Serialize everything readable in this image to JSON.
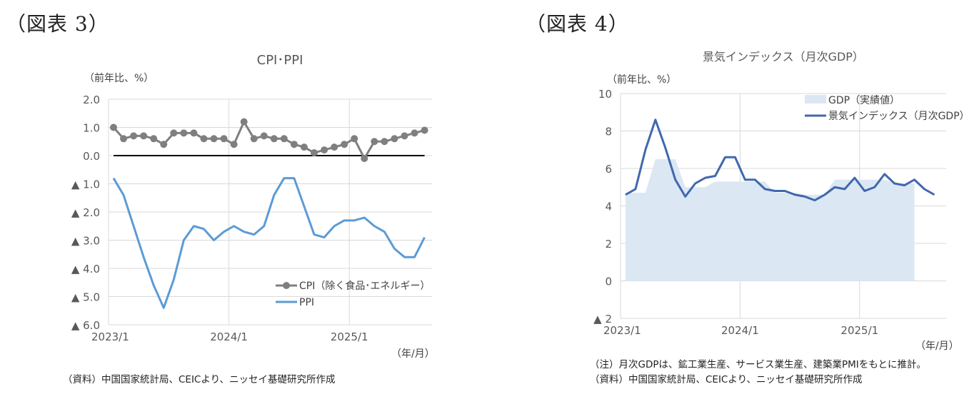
{
  "figures": [
    {
      "label": "（図表 3）",
      "title": "CPI･PPI",
      "unit": "（前年比、%）",
      "xunit": "（年/月）",
      "source": "（資料）中国国家統計局、CEICより、ニッセイ基礎研究所作成"
    },
    {
      "label": "（図表 4）",
      "title": "景気インデックス（月次GDP）",
      "unit": "（前年比、%）",
      "xunit": "（年/月）",
      "note": "（注）月次GDPは、鉱工業生産、サービス業生産、建築業PMIをもとに推計。",
      "source": "（資料）中国国家統計局、CEICより、ニッセイ基礎研究所作成"
    }
  ],
  "chart_data": [
    {
      "type": "line",
      "title": "CPI･PPI",
      "xlabel": "（年/月）",
      "ylabel": "（前年比、%）",
      "ylim": [
        -6.0,
        2.0
      ],
      "y_ticks": [
        "2.0",
        "1.0",
        "0.0",
        "▲ 1.0",
        "▲ 2.0",
        "▲ 3.0",
        "▲ 4.0",
        "▲ 5.0",
        "▲ 6.0"
      ],
      "x_tick_labels": [
        "2023/1",
        "2024/1",
        "2025/1"
      ],
      "grid": true,
      "legend_position": "lower right",
      "x": [
        "2023/1",
        "2023/2",
        "2023/3",
        "2023/4",
        "2023/5",
        "2023/6",
        "2023/7",
        "2023/8",
        "2023/9",
        "2023/10",
        "2023/11",
        "2023/12",
        "2024/1",
        "2024/2",
        "2024/3",
        "2024/4",
        "2024/5",
        "2024/6",
        "2024/7",
        "2024/8",
        "2024/9",
        "2024/10",
        "2024/11",
        "2024/12",
        "2025/1",
        "2025/2",
        "2025/3",
        "2025/4",
        "2025/5",
        "2025/6",
        "2025/7",
        "2025/8"
      ],
      "series": [
        {
          "name": "CPI（除く食品･エネルギー）",
          "color": "#7f7f7f",
          "marker": "circle",
          "values": [
            1.0,
            0.6,
            0.7,
            0.7,
            0.6,
            0.4,
            0.8,
            0.8,
            0.8,
            0.6,
            0.6,
            0.6,
            0.4,
            1.2,
            0.6,
            0.7,
            0.6,
            0.6,
            0.4,
            0.3,
            0.1,
            0.2,
            0.3,
            0.4,
            0.6,
            -0.1,
            0.5,
            0.5,
            0.6,
            0.7,
            0.8,
            0.9
          ]
        },
        {
          "name": "PPI",
          "color": "#5b9bd5",
          "marker": "none",
          "values": [
            -0.8,
            -1.4,
            -2.5,
            -3.6,
            -4.6,
            -5.4,
            -4.4,
            -3.0,
            -2.5,
            -2.6,
            -3.0,
            -2.7,
            -2.5,
            -2.7,
            -2.8,
            -2.5,
            -1.4,
            -0.8,
            -0.8,
            -1.8,
            -2.8,
            -2.9,
            -2.5,
            -2.3,
            -2.3,
            -2.2,
            -2.5,
            -2.7,
            -3.3,
            -3.6,
            -3.6,
            -2.9
          ]
        }
      ]
    },
    {
      "type": "line",
      "title": "景気インデックス（月次GDP）",
      "xlabel": "（年/月）",
      "ylabel": "（前年比、%）",
      "ylim": [
        -2,
        10
      ],
      "y_ticks": [
        "10",
        "8",
        "6",
        "4",
        "2",
        "0",
        "▲ 2"
      ],
      "x_tick_labels": [
        "2023/1",
        "2024/1",
        "2025/1"
      ],
      "grid": true,
      "legend_position": "upper right",
      "x": [
        "2023/1",
        "2023/2",
        "2023/3",
        "2023/4",
        "2023/5",
        "2023/6",
        "2023/7",
        "2023/8",
        "2023/9",
        "2023/10",
        "2023/11",
        "2023/12",
        "2024/1",
        "2024/2",
        "2024/3",
        "2024/4",
        "2024/5",
        "2024/6",
        "2024/7",
        "2024/8",
        "2024/9",
        "2024/10",
        "2024/11",
        "2024/12",
        "2025/1",
        "2025/2",
        "2025/3",
        "2025/4",
        "2025/5",
        "2025/6",
        "2025/7",
        "2025/8"
      ],
      "series": [
        {
          "name": "GDP（実績値）",
          "type": "area",
          "color": "#dce7f4",
          "values": [
            4.7,
            4.7,
            4.7,
            6.5,
            6.5,
            6.5,
            5.0,
            5.0,
            5.0,
            5.3,
            5.3,
            5.3,
            5.3,
            5.3,
            5.3,
            4.7,
            4.7,
            4.7,
            4.6,
            4.6,
            4.6,
            5.4,
            5.4,
            5.4,
            5.4,
            5.4,
            5.4,
            5.2,
            5.2,
            5.2,
            null,
            null
          ]
        },
        {
          "name": "景気インデックス（月次GDP）",
          "type": "line",
          "color": "#4068ad",
          "values": [
            4.6,
            4.9,
            7.0,
            8.6,
            7.1,
            5.4,
            4.5,
            5.2,
            5.5,
            5.6,
            6.6,
            6.6,
            5.4,
            5.4,
            4.9,
            4.8,
            4.8,
            4.6,
            4.5,
            4.3,
            4.6,
            5.0,
            4.9,
            5.5,
            4.8,
            5.0,
            5.7,
            5.2,
            5.1,
            5.4,
            4.9,
            4.6
          ]
        }
      ]
    }
  ]
}
